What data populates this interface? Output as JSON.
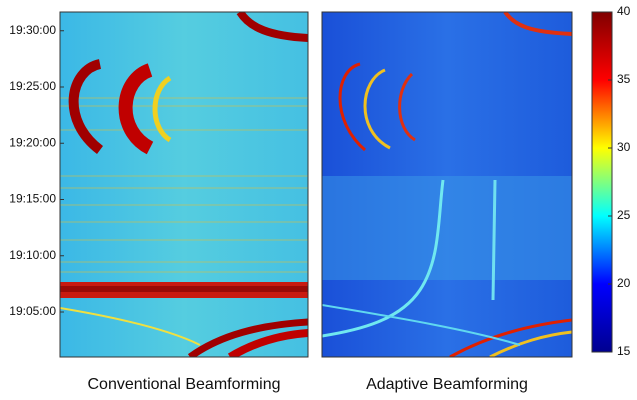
{
  "chart_data": [
    {
      "type": "heatmap",
      "title": "Conventional Beamforming",
      "ylim": [
        "19:01:00",
        "19:31:40"
      ],
      "yticks": [
        "19:05:00",
        "19:10:00",
        "19:15:00",
        "19:20:00",
        "19:25:00",
        "19:30:00"
      ]
    },
    {
      "type": "heatmap",
      "title": "Adaptive Beamforming",
      "ylim": [
        "19:01:00",
        "19:31:40"
      ]
    },
    {
      "type": "colorbar",
      "ylim": [
        15,
        40
      ],
      "yticks": [
        15,
        20,
        25,
        30,
        35,
        40
      ],
      "colors": [
        "#00008f",
        "#0000ff",
        "#00ffff",
        "#ffff00",
        "#ff0000",
        "#800000"
      ]
    }
  ]
}
